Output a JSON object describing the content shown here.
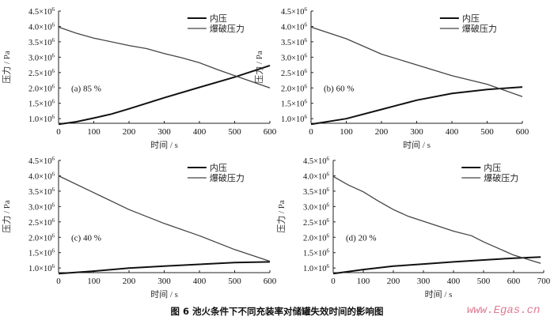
{
  "caption": "图 6   池火条件下不同充装率对储罐失效时间的影响图",
  "watermark": "www.Egas.cn",
  "chart_data": [
    {
      "type": "line",
      "panel_label": "(a) 85 %",
      "xlabel": "时间 / s",
      "ylabel": "压力 / Pa",
      "xlim": [
        0,
        600
      ],
      "ylim": [
        0.85,
        4.5
      ],
      "xticks": [
        0,
        100,
        200,
        300,
        400,
        500,
        600
      ],
      "yticks": [
        "1.0",
        "1.5",
        "2.0",
        "2.5",
        "3.0",
        "3.5",
        "4.0",
        "4.5"
      ],
      "ytick_suffix": "×10",
      "ytick_exp": "6",
      "legend": "top-right",
      "series": [
        {
          "name": "内压",
          "color": "#111111",
          "x": [
            0,
            50,
            100,
            150,
            200,
            300,
            400,
            500,
            600
          ],
          "y": [
            0.82,
            0.9,
            1.02,
            1.15,
            1.32,
            1.68,
            2.02,
            2.35,
            2.73
          ]
        },
        {
          "name": "爆破压力",
          "color": "#444444",
          "x": [
            0,
            50,
            100,
            200,
            250,
            300,
            350,
            400,
            450,
            500,
            550,
            600
          ],
          "y": [
            3.98,
            3.78,
            3.62,
            3.38,
            3.28,
            3.12,
            2.98,
            2.82,
            2.6,
            2.4,
            2.2,
            2.0
          ]
        }
      ]
    },
    {
      "type": "line",
      "panel_label": "(b) 60 %",
      "xlabel": "时间 / s",
      "ylabel": "压力 / Pa",
      "xlim": [
        0,
        600
      ],
      "ylim": [
        0.85,
        4.5
      ],
      "xticks": [
        0,
        100,
        200,
        300,
        400,
        500,
        600
      ],
      "yticks": [
        "1.0",
        "1.5",
        "2.0",
        "2.5",
        "3.0",
        "3.5",
        "4.0",
        "4.5"
      ],
      "ytick_suffix": "×10",
      "ytick_exp": "6",
      "legend": "top-right",
      "series": [
        {
          "name": "内压",
          "color": "#111111",
          "x": [
            0,
            100,
            200,
            300,
            400,
            500,
            600
          ],
          "y": [
            0.82,
            1.0,
            1.3,
            1.6,
            1.82,
            1.95,
            2.03
          ]
        },
        {
          "name": "爆破压力",
          "color": "#444444",
          "x": [
            0,
            100,
            200,
            300,
            400,
            500,
            600
          ],
          "y": [
            3.98,
            3.6,
            3.1,
            2.75,
            2.4,
            2.12,
            1.72
          ]
        }
      ]
    },
    {
      "type": "line",
      "panel_label": "(c) 40 %",
      "xlabel": "时间 / s",
      "ylabel": "压力 / Pa",
      "xlim": [
        0,
        600
      ],
      "ylim": [
        0.85,
        4.5
      ],
      "xticks": [
        0,
        100,
        200,
        300,
        400,
        500,
        600
      ],
      "yticks": [
        "1.0",
        "1.5",
        "2.0",
        "2.5",
        "3.0",
        "3.5",
        "4.0",
        "4.5"
      ],
      "ytick_suffix": "×10",
      "ytick_exp": "6",
      "legend": "top-right",
      "series": [
        {
          "name": "内压",
          "color": "#111111",
          "x": [
            0,
            100,
            200,
            300,
            400,
            500,
            600
          ],
          "y": [
            0.82,
            0.9,
            1.0,
            1.06,
            1.12,
            1.18,
            1.2
          ]
        },
        {
          "name": "爆破压力",
          "color": "#444444",
          "x": [
            0,
            100,
            200,
            300,
            400,
            500,
            600
          ],
          "y": [
            4.0,
            3.45,
            2.9,
            2.45,
            2.05,
            1.6,
            1.22
          ]
        }
      ]
    },
    {
      "type": "line",
      "panel_label": "(d) 20 %",
      "xlabel": "时间 / s",
      "ylabel": "压力 / Pa",
      "xlim": [
        0,
        700
      ],
      "ylim": [
        0.85,
        4.5
      ],
      "xticks": [
        0,
        100,
        200,
        300,
        400,
        500,
        600,
        700
      ],
      "yticks": [
        "1.0",
        "1.5",
        "2.0",
        "2.5",
        "3.0",
        "3.5",
        "4.0",
        "4.5"
      ],
      "ytick_suffix": "×10",
      "ytick_exp": "6",
      "legend": "top-right",
      "series": [
        {
          "name": "内压",
          "color": "#111111",
          "x": [
            0,
            100,
            200,
            300,
            400,
            500,
            600,
            690
          ],
          "y": [
            0.82,
            0.95,
            1.06,
            1.13,
            1.2,
            1.26,
            1.32,
            1.36
          ]
        },
        {
          "name": "爆破压力",
          "color": "#444444",
          "x": [
            0,
            50,
            100,
            150,
            200,
            250,
            300,
            400,
            460,
            500,
            600,
            690
          ],
          "y": [
            3.98,
            3.7,
            3.48,
            3.18,
            2.9,
            2.68,
            2.52,
            2.2,
            2.05,
            1.85,
            1.42,
            1.15
          ]
        }
      ]
    }
  ]
}
